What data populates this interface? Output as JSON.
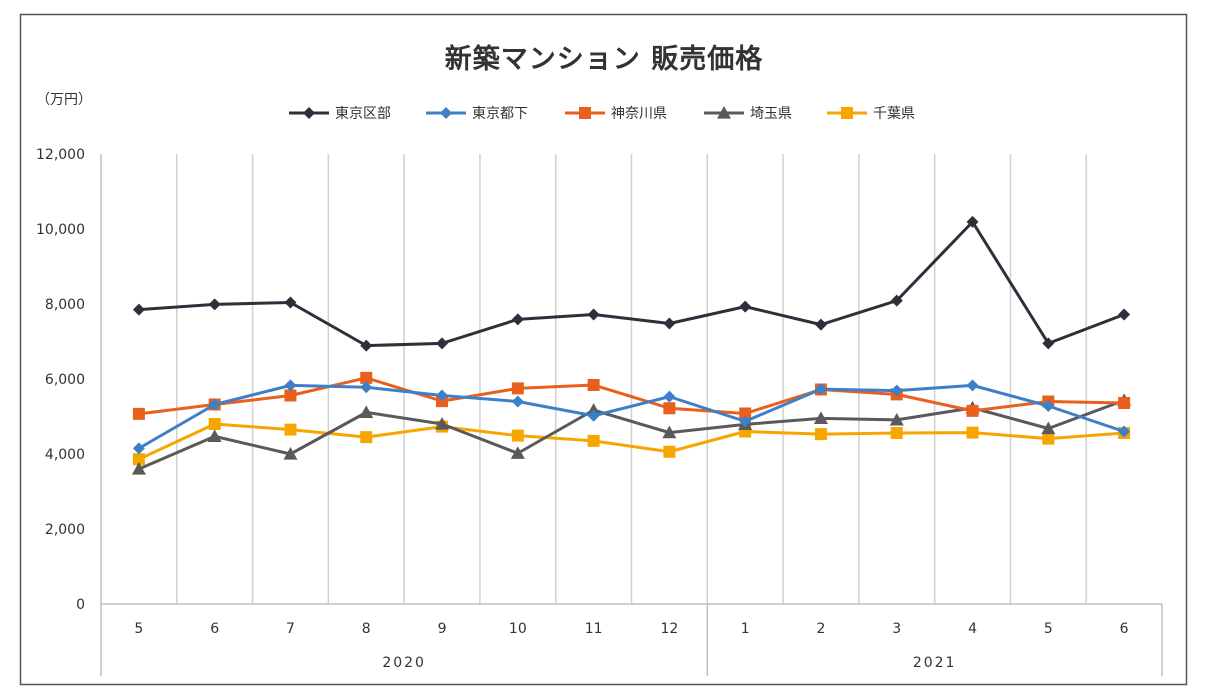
{
  "chart_data": {
    "type": "line",
    "title": "新築マンション 販売価格",
    "ylabel": "（万円）",
    "xlabel": "",
    "ylim": [
      0,
      12000
    ],
    "yticks": [
      0,
      2000,
      4000,
      6000,
      8000,
      10000,
      12000
    ],
    "ytick_labels": [
      "0",
      "2,000",
      "4,000",
      "6,000",
      "8,000",
      "10,000",
      "12,000"
    ],
    "grid": "vertical",
    "legend": "top",
    "categories": [
      "5",
      "6",
      "7",
      "8",
      "9",
      "10",
      "11",
      "12",
      "1",
      "2",
      "3",
      "4",
      "5",
      "6"
    ],
    "groups": [
      {
        "label": "2020",
        "start": 0,
        "end": 7
      },
      {
        "label": "2021",
        "start": 8,
        "end": 13
      }
    ],
    "series": [
      {
        "name": "東京区部",
        "color": "#2b303b",
        "marker": "diamond",
        "values": [
          7850,
          7990,
          8040,
          6890,
          6950,
          7590,
          7720,
          7480,
          7930,
          7450,
          8090,
          10190,
          6950,
          7720
        ]
      },
      {
        "name": "東京都下",
        "color": "#3e7fc8",
        "marker": "diamond",
        "values": [
          4150,
          5320,
          5830,
          5780,
          5560,
          5400,
          5020,
          5530,
          4870,
          5730,
          5690,
          5830,
          5280,
          4600
        ]
      },
      {
        "name": "神奈川県",
        "color": "#e8601c",
        "marker": "square",
        "values": [
          5070,
          5320,
          5560,
          6030,
          5410,
          5750,
          5840,
          5220,
          5080,
          5720,
          5590,
          5150,
          5400,
          5360
        ]
      },
      {
        "name": "埼玉県",
        "color": "#5a5a5a",
        "marker": "triangle",
        "values": [
          3600,
          4470,
          4000,
          5110,
          4800,
          4020,
          5170,
          4570,
          4790,
          4950,
          4910,
          5230,
          4680,
          5430
        ]
      },
      {
        "name": "千葉県",
        "color": "#f7a600",
        "marker": "square",
        "values": [
          3860,
          4800,
          4650,
          4450,
          4730,
          4490,
          4350,
          4060,
          4600,
          4530,
          4560,
          4570,
          4410,
          4560
        ]
      }
    ]
  }
}
